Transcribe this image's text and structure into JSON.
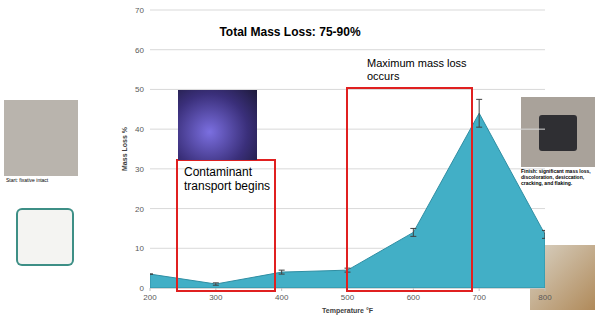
{
  "chart_data": {
    "type": "area",
    "title": "Total Mass Loss: 75-90%",
    "x_label": "Temperature °F",
    "y_label": "Mass Loss %",
    "x": [
      200,
      300,
      400,
      500,
      600,
      700,
      800
    ],
    "values": [
      3.5,
      1,
      4,
      4.5,
      14,
      44,
      13.5
    ],
    "errors": [
      0,
      0.3,
      0.5,
      0.5,
      1,
      3.5,
      1
    ],
    "color": "#42afc6",
    "xlim": [
      200,
      800
    ],
    "ylim": [
      0,
      70
    ],
    "xticks": [
      200,
      300,
      400,
      500,
      600,
      700,
      800
    ],
    "yticks": [
      0,
      10,
      20,
      30,
      40,
      50,
      60,
      70
    ],
    "grid": true,
    "annotations": [
      "Contaminant transport begins",
      "Maximum mass loss occurs",
      "Start: fixative intact",
      "Finish: significant mass loss, discoloration, desiccation, cracking, and flaking."
    ]
  }
}
